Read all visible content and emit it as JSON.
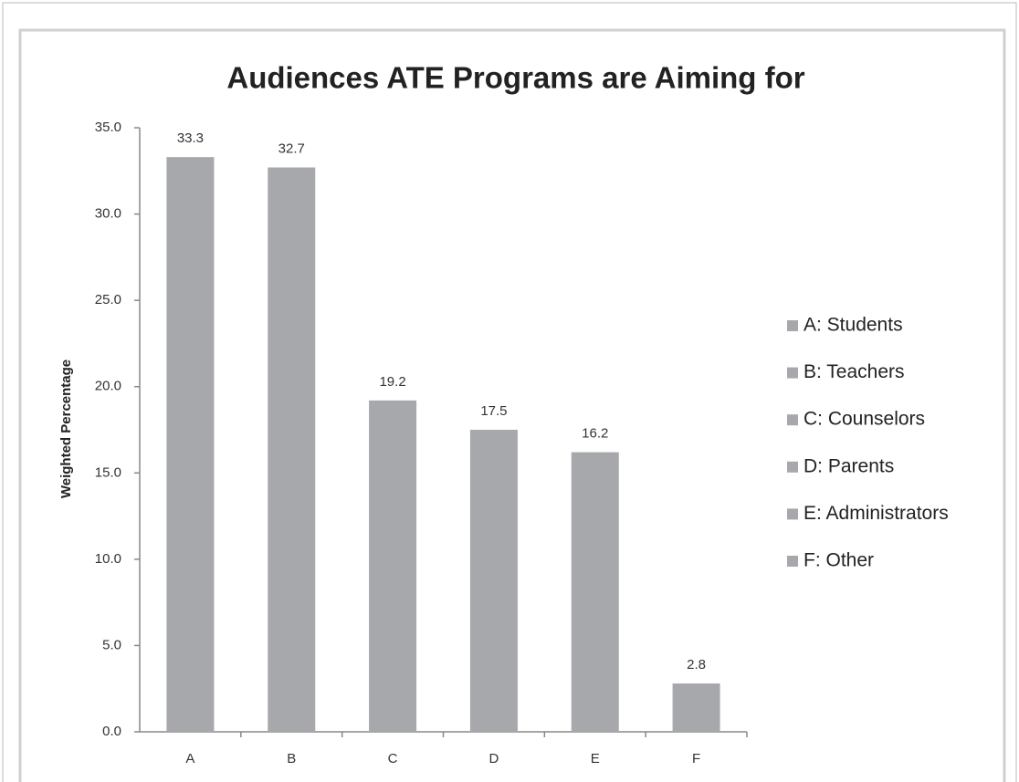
{
  "chart_data": {
    "type": "bar",
    "title": "Audiences ATE Programs are Aiming for",
    "y_label": "Weighted Percentage",
    "categories": [
      "A",
      "B",
      "C",
      "D",
      "E",
      "F"
    ],
    "values": [
      33.3,
      32.7,
      19.2,
      17.5,
      16.2,
      2.8
    ],
    "legend_labels": [
      "A: Students",
      "B: Teachers",
      "C: Counselors",
      "D: Parents",
      "E: Administrators",
      "F: Other"
    ],
    "color": "#a7a8ab",
    "ylim": [
      0,
      35
    ],
    "yticks": [
      {
        "value": 0,
        "label": "0.0"
      },
      {
        "value": 5,
        "label": "5.0"
      },
      {
        "value": 10,
        "label": "10.0"
      },
      {
        "value": 15,
        "label": "15.0"
      },
      {
        "value": 20,
        "label": "20.0"
      },
      {
        "value": 25,
        "label": "25.0"
      },
      {
        "value": 30,
        "label": "30.0"
      },
      {
        "value": 35,
        "label": "35.0"
      }
    ],
    "grid": false
  }
}
